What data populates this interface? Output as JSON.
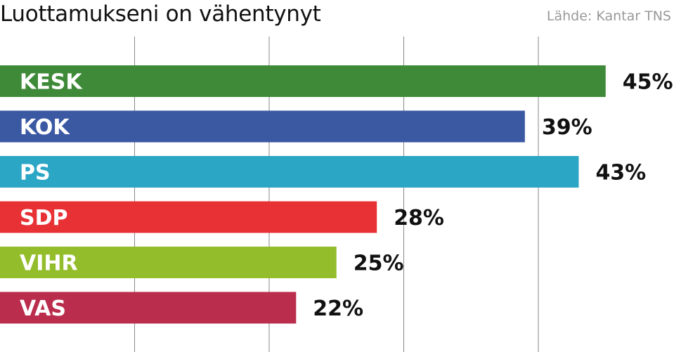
{
  "title": "Luottamukseni on vähentynyt",
  "source": "Lähde: Kantar TNS",
  "colors": {
    "KESK": "#3e8a38",
    "KOK": "#3b59a3",
    "PS": "#2ba6c5",
    "SDP": "#e83135",
    "VIHR": "#94bd2c",
    "VAS": "#bb2d4c",
    "grid": "#888888"
  },
  "chart_data": {
    "type": "bar",
    "orientation": "horizontal",
    "title": "Luottamukseni on vähentynyt",
    "categories": [
      "KESK",
      "KOK",
      "PS",
      "SDP",
      "VIHR",
      "VAS"
    ],
    "values": [
      45,
      39,
      43,
      28,
      25,
      22
    ],
    "value_labels": [
      "45%",
      "39%",
      "43%",
      "28%",
      "25%",
      "22%"
    ],
    "unit": "%",
    "xlim": [
      0,
      50
    ],
    "grid": true,
    "legend": "none"
  }
}
